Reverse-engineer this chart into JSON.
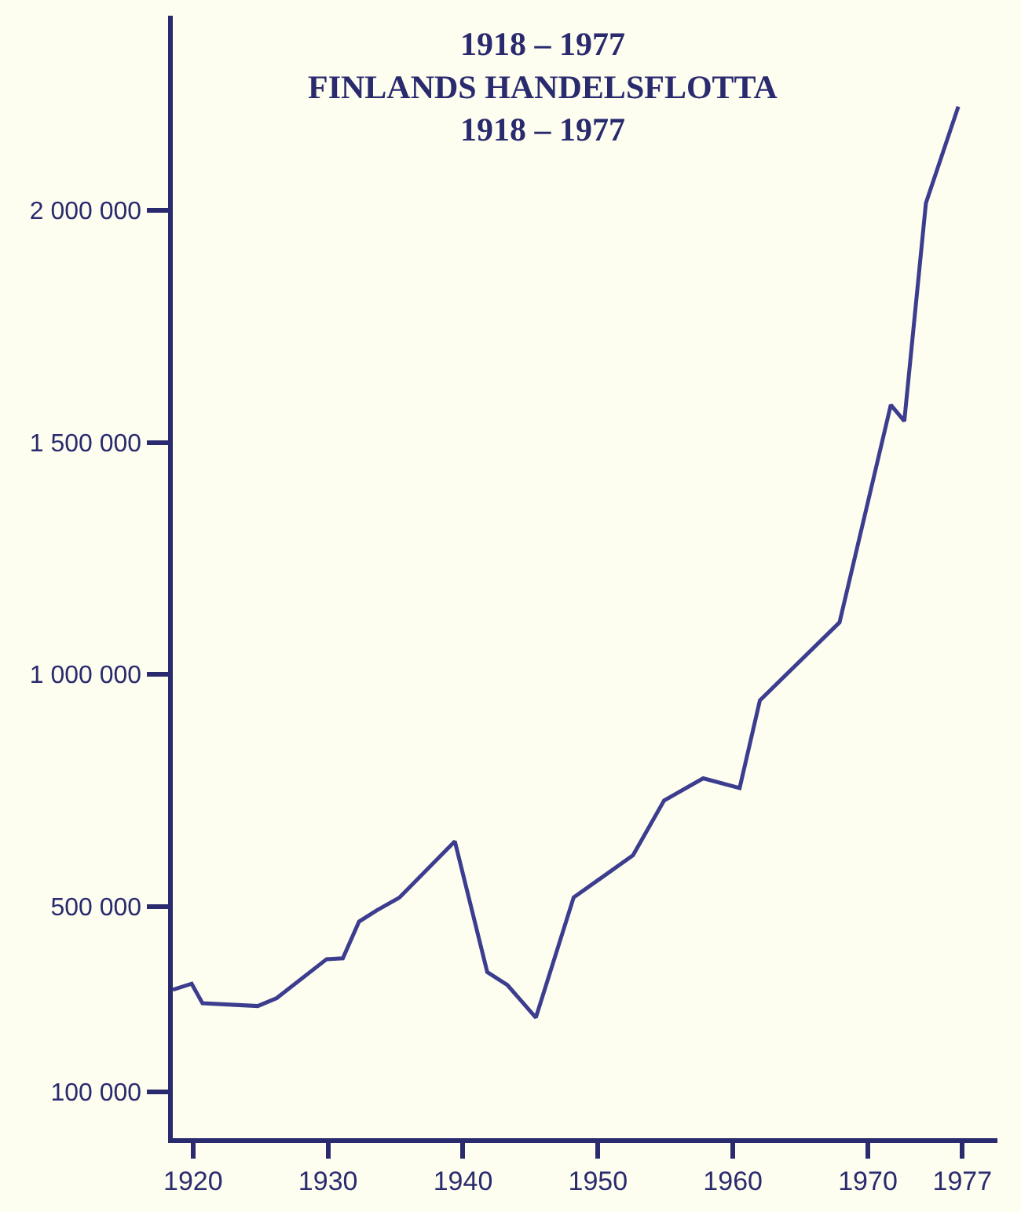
{
  "chart_data": {
    "type": "line",
    "title": "1918 – 1977\nFINLANDS HANDELSFLOTTA\n1918 – 1977",
    "x": [
      1918.5,
      1919.9,
      1920.7,
      1924.8,
      1926.2,
      1929.9,
      1931.1,
      1932.3,
      1933.6,
      1935.3,
      1939.4,
      1941.8,
      1943.3,
      1945.4,
      1948.2,
      1952.6,
      1954.9,
      1957.8,
      1960.5,
      1962.0,
      1967.9,
      1971.7,
      1972.7,
      1974.3,
      1976.7
    ],
    "series": [
      {
        "color": "#3d3d8f",
        "values": [
          320000,
          333000,
          291000,
          285000,
          302000,
          386000,
          388000,
          467000,
          491000,
          519000,
          640000,
          358000,
          330000,
          260000,
          519000,
          610000,
          728000,
          776000,
          755000,
          944000,
          1112000,
          1581000,
          1546000,
          2016000,
          2224000
        ]
      }
    ],
    "xlim": [
      1918.5,
      1979.6
    ],
    "xticks": [
      1920,
      1930,
      1940,
      1950,
      1960,
      1970,
      1977
    ],
    "ylim": [
      0,
      2420000
    ],
    "yticks": [
      {
        "value": 100000,
        "label": "100 000"
      },
      {
        "value": 500000,
        "label": "500 000"
      },
      {
        "value": 1000000,
        "label": "1 000 000"
      },
      {
        "value": 1500000,
        "label": "1 500 000"
      },
      {
        "value": 2000000,
        "label": "2 000 000"
      }
    ],
    "marker": "none",
    "line_style": "solid"
  }
}
